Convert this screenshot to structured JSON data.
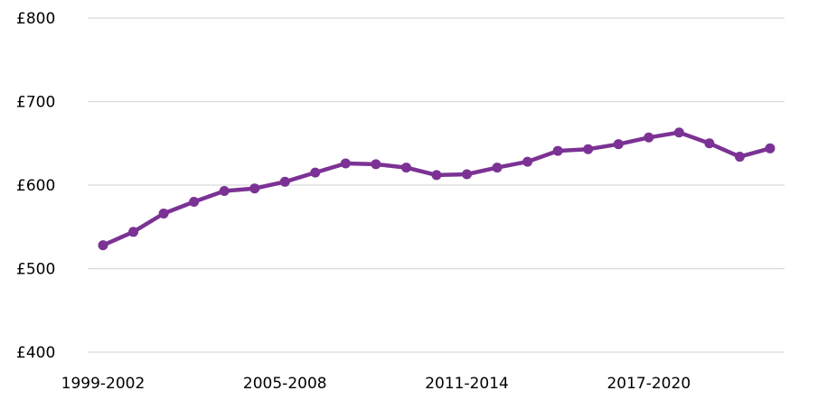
{
  "chart_data": {
    "type": "line",
    "title": "",
    "xlabel": "",
    "ylabel": "",
    "x": [
      "1999-2002",
      "2000-2003",
      "2001-2004",
      "2002-2005",
      "2003-2006",
      "2004-2007",
      "2005-2008",
      "2006-2009",
      "2007-2010",
      "2008-2011",
      "2009-2012",
      "2010-2013",
      "2011-2014",
      "2012-2015",
      "2013-2016",
      "2014-2017",
      "2015-2018",
      "2016-2019",
      "2017-2020",
      "2018-2021",
      "2019-2022",
      "2020-2023",
      "2021-2024"
    ],
    "x_tick_labels": [
      "1999-2002",
      "2005-2008",
      "2011-2014",
      "2017-2020"
    ],
    "series": [
      {
        "values": [
          528,
          544,
          566,
          580,
          593,
          596,
          604,
          615,
          626,
          625,
          621,
          612,
          613,
          621,
          628,
          641,
          643,
          649,
          657,
          663,
          650,
          634,
          644
        ]
      }
    ],
    "ylim": [
      400,
      800
    ],
    "y_ticks": [
      400,
      500,
      600,
      700,
      800
    ],
    "y_tick_labels": [
      "£400",
      "£500",
      "£600",
      "£700",
      "£800"
    ],
    "grid": true,
    "legend": "none",
    "colors": {
      "line": "#7b3294",
      "grid": "#d9d9d9"
    }
  }
}
